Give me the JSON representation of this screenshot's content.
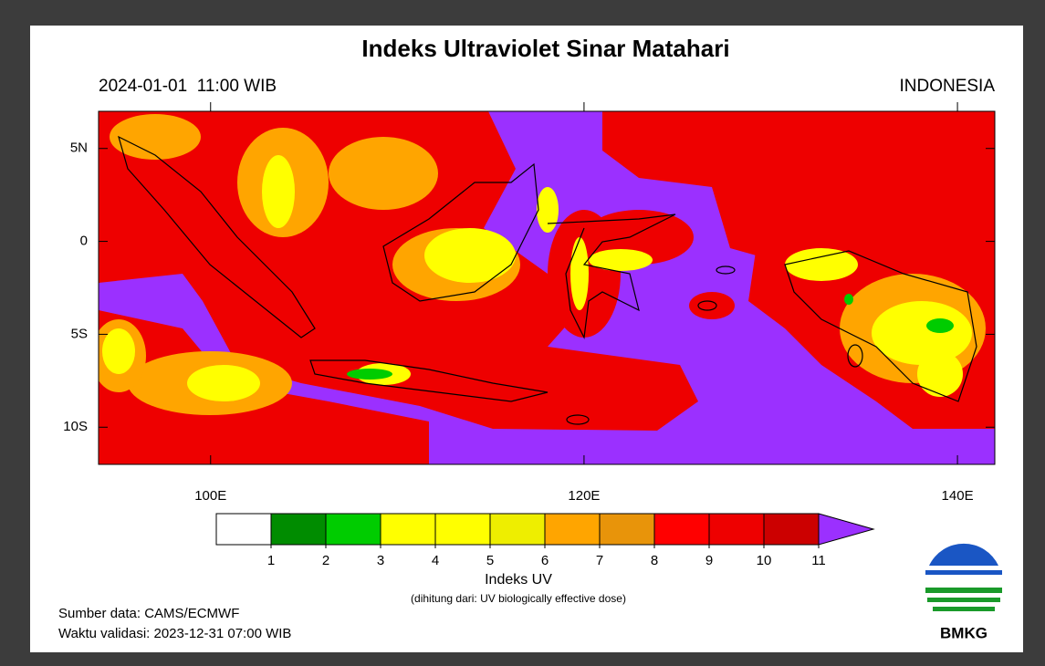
{
  "title": "Indeks Ultraviolet Sinar Matahari",
  "valid_time": "2024-01-01  11:00 WIB",
  "region": "INDONESIA",
  "map": {
    "lon_range": [
      94,
      142
    ],
    "lat_range": [
      -12,
      7
    ],
    "lat_ticks": [
      {
        "value": 5,
        "label": "5N"
      },
      0,
      {
        "value": -5,
        "label": "5S"
      },
      {
        "value": -10,
        "label": "10S"
      }
    ],
    "lon_ticks": [
      {
        "value": 100,
        "label": "100E"
      },
      {
        "value": 120,
        "label": "120E"
      },
      {
        "value": 140,
        "label": "140E"
      }
    ]
  },
  "colorbar": {
    "levels": [
      1,
      2,
      3,
      4,
      5,
      6,
      7,
      8,
      9,
      10,
      11
    ],
    "colors": [
      "#ffffff",
      "#008c00",
      "#00cc00",
      "#ffff00",
      "#ffff00",
      "#eeee00",
      "#ffa500",
      "#e8940a",
      "#ff0000",
      "#ee0000",
      "#cc0000",
      "#9b30ff"
    ],
    "label": "Indeks UV",
    "note": "(dihitung dari: UV biologically effective dose)"
  },
  "footer": {
    "source": "Sumber data: CAMS/ECMWF",
    "validation": "Waktu validasi: 2023-12-31 07:00 WIB"
  },
  "logo": "BMKG"
}
